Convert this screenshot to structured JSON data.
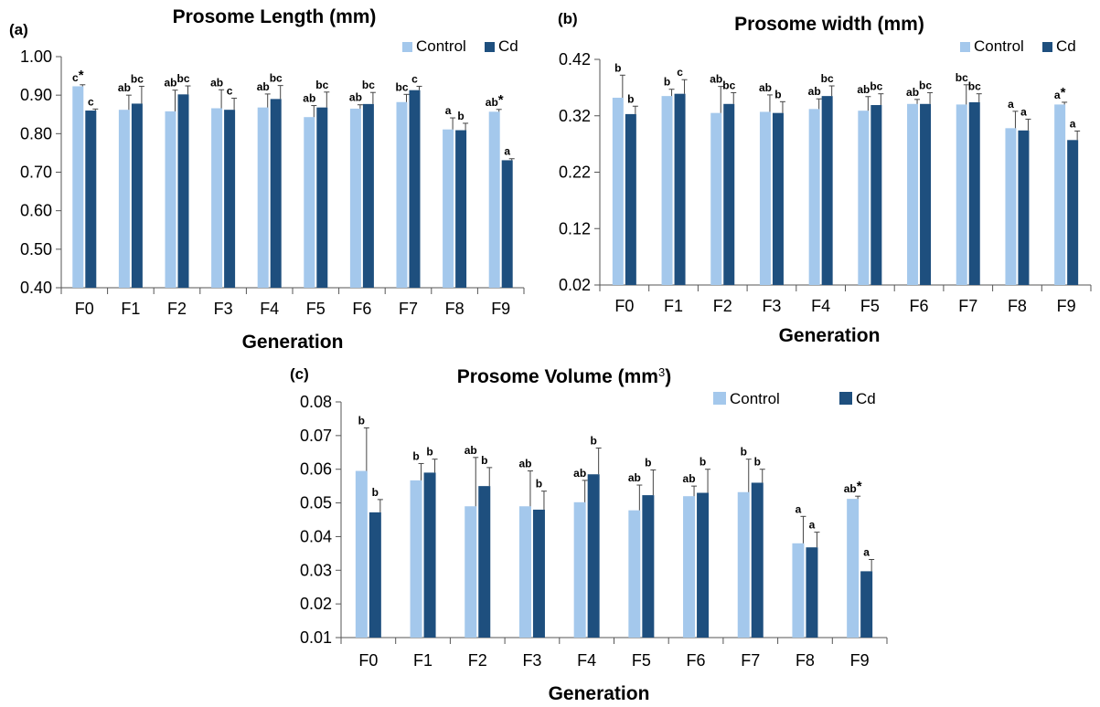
{
  "colors": {
    "control": "#a4c8ec",
    "cd": "#1e4f7e",
    "axis": "#555555",
    "error": "#444444"
  },
  "chart_data": [
    {
      "type": "bar",
      "panel": "(a)",
      "title": "Prosome Length (mm)",
      "title_sup": "",
      "xlabel": "Generation",
      "ylabel": "",
      "ylim": [
        0.4,
        1.0
      ],
      "yticks": [
        "0.40",
        "0.50",
        "0.60",
        "0.70",
        "0.80",
        "0.90",
        "1.00"
      ],
      "legend": [
        "Control",
        "Cd"
      ],
      "legend_position": "top-right",
      "grid": false,
      "categories": [
        "F0",
        "F1",
        "F2",
        "F3",
        "F4",
        "F5",
        "F6",
        "F7",
        "F8",
        "F9"
      ],
      "series": [
        {
          "name": "Control",
          "values": [
            0.923,
            0.862,
            0.858,
            0.866,
            0.868,
            0.843,
            0.865,
            0.882,
            0.811,
            0.857
          ],
          "errors": [
            0.004,
            0.038,
            0.055,
            0.048,
            0.035,
            0.03,
            0.01,
            0.02,
            0.03,
            0.006
          ],
          "labels": [
            "c*",
            "ab",
            "ab",
            "ab",
            "ab",
            "ab",
            "ab",
            "bc",
            "a",
            "ab*"
          ]
        },
        {
          "name": "Cd",
          "values": [
            0.86,
            0.878,
            0.902,
            0.862,
            0.89,
            0.868,
            0.877,
            0.913,
            0.809,
            0.731
          ],
          "errors": [
            0.004,
            0.045,
            0.022,
            0.03,
            0.035,
            0.04,
            0.03,
            0.01,
            0.018,
            0.004
          ],
          "labels": [
            "c",
            "bc",
            "bc",
            "c",
            "bc",
            "bc",
            "bc",
            "c",
            "b",
            "a"
          ]
        }
      ]
    },
    {
      "type": "bar",
      "panel": "(b)",
      "title": "Prosome width (mm)",
      "title_sup": "",
      "xlabel": "Generation",
      "ylabel": "",
      "ylim": [
        0.02,
        0.42
      ],
      "yticks": [
        "0.02",
        "0.12",
        "0.22",
        "0.32",
        "0.42"
      ],
      "legend": [
        "Control",
        "Cd"
      ],
      "legend_position": "top-right",
      "grid": false,
      "categories": [
        "F0",
        "F1",
        "F2",
        "F3",
        "F4",
        "F5",
        "F6",
        "F7",
        "F8",
        "F9"
      ],
      "series": [
        {
          "name": "Control",
          "values": [
            0.352,
            0.355,
            0.325,
            0.327,
            0.332,
            0.329,
            0.341,
            0.34,
            0.298,
            0.34
          ],
          "errors": [
            0.04,
            0.012,
            0.047,
            0.03,
            0.018,
            0.025,
            0.008,
            0.035,
            0.03,
            0.004
          ],
          "labels": [
            "b",
            "b",
            "ab",
            "ab",
            "ab",
            "ab",
            "ab",
            "bc",
            "a",
            "a*"
          ]
        },
        {
          "name": "Cd",
          "values": [
            0.323,
            0.359,
            0.341,
            0.325,
            0.355,
            0.339,
            0.341,
            0.344,
            0.294,
            0.277
          ],
          "errors": [
            0.014,
            0.025,
            0.02,
            0.02,
            0.018,
            0.02,
            0.02,
            0.015,
            0.02,
            0.016
          ],
          "labels": [
            "b",
            "c",
            "bc",
            "b",
            "bc",
            "bc",
            "bc",
            "bc",
            "a",
            "a"
          ]
        }
      ]
    },
    {
      "type": "bar",
      "panel": "(c)",
      "title": "Prosome Volume (mm",
      "title_sup": "3",
      "title_close": ")",
      "xlabel": "Generation",
      "ylabel": "",
      "ylim": [
        0.01,
        0.08
      ],
      "yticks": [
        "0.01",
        "0.02",
        "0.03",
        "0.04",
        "0.05",
        "0.06",
        "0.07",
        "0.08"
      ],
      "legend": [
        "Control",
        "Cd"
      ],
      "legend_position": "top-right",
      "grid": false,
      "categories": [
        "F0",
        "F1",
        "F2",
        "F3",
        "F4",
        "F5",
        "F6",
        "F7",
        "F8",
        "F9"
      ],
      "series": [
        {
          "name": "Control",
          "values": [
            0.0595,
            0.0567,
            0.049,
            0.049,
            0.0502,
            0.0478,
            0.052,
            0.0532,
            0.038,
            0.0512
          ],
          "errors": [
            0.0128,
            0.005,
            0.0145,
            0.0105,
            0.0065,
            0.0075,
            0.003,
            0.0098,
            0.008,
            0.0008
          ],
          "labels": [
            "b",
            "b",
            "ab",
            "ab",
            "ab",
            "ab",
            "ab",
            "b",
            "a",
            "ab*"
          ]
        },
        {
          "name": "Cd",
          "values": [
            0.0472,
            0.059,
            0.055,
            0.048,
            0.0585,
            0.0523,
            0.053,
            0.056,
            0.0368,
            0.0297
          ],
          "errors": [
            0.0038,
            0.004,
            0.0055,
            0.0055,
            0.0078,
            0.0075,
            0.007,
            0.004,
            0.0045,
            0.0035
          ],
          "labels": [
            "b",
            "b",
            "b",
            "b",
            "b",
            "b",
            "b",
            "b",
            "a",
            "a"
          ]
        }
      ]
    }
  ]
}
